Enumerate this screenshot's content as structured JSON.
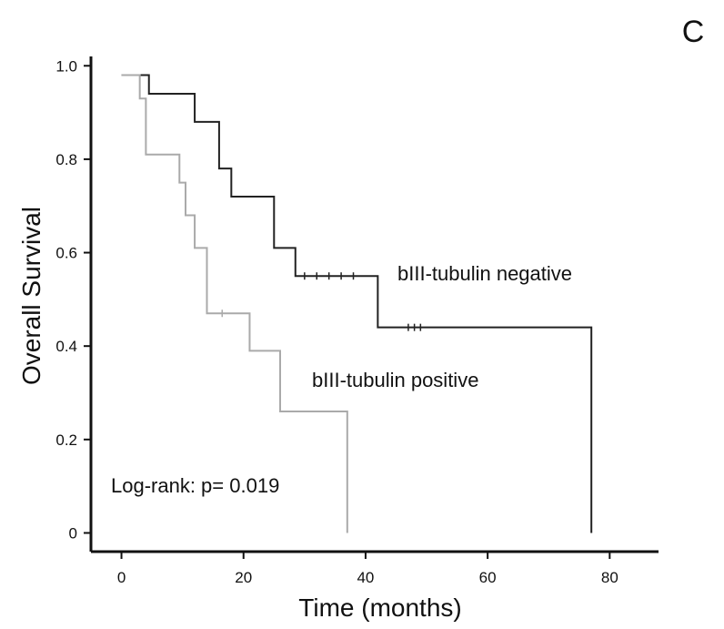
{
  "panel_label": "C",
  "chart_data": {
    "type": "line",
    "style": "step",
    "xlabel": "Time (months)",
    "ylabel": "Overall Survival",
    "xlim": [
      -5,
      88
    ],
    "ylim": [
      -0.04,
      1.02
    ],
    "x_ticks": [
      0,
      20,
      40,
      60,
      80
    ],
    "x_tick_labels": [
      "0",
      "20",
      "40",
      "60",
      "80"
    ],
    "y_ticks": [
      0,
      0.2,
      0.4,
      0.6,
      0.8,
      1.0
    ],
    "y_tick_labels": [
      "0",
      "0.2",
      "0.4",
      "0.6",
      "0.8",
      "1.0"
    ],
    "grid": false,
    "series": [
      {
        "name": "bIII-tubulin negative",
        "color": "#222222",
        "x": [
          0,
          4.5,
          12,
          16,
          18,
          25,
          28.5,
          42,
          77
        ],
        "y": [
          0.98,
          0.94,
          0.88,
          0.78,
          0.72,
          0.61,
          0.55,
          0.44,
          0.0
        ],
        "censored": [
          {
            "x": 30,
            "y": 0.55
          },
          {
            "x": 32,
            "y": 0.55
          },
          {
            "x": 34,
            "y": 0.55
          },
          {
            "x": 36,
            "y": 0.55
          },
          {
            "x": 38,
            "y": 0.55
          },
          {
            "x": 47,
            "y": 0.44
          },
          {
            "x": 48,
            "y": 0.44
          },
          {
            "x": 49,
            "y": 0.44
          }
        ]
      },
      {
        "name": "bIII-tubulin positive",
        "color": "#aaaaaa",
        "x": [
          0,
          3,
          4,
          9.5,
          10.5,
          12,
          14,
          21,
          26,
          37
        ],
        "y": [
          0.98,
          0.93,
          0.81,
          0.75,
          0.68,
          0.61,
          0.47,
          0.39,
          0.26,
          0.0
        ],
        "censored": [
          {
            "x": 16.5,
            "y": 0.47
          }
        ]
      }
    ],
    "annotations": [
      {
        "text": "bIII-tubulin negative"
      },
      {
        "text": "bIII-tubulin positive"
      },
      {
        "text": "Log-rank: p= 0.019"
      }
    ]
  }
}
